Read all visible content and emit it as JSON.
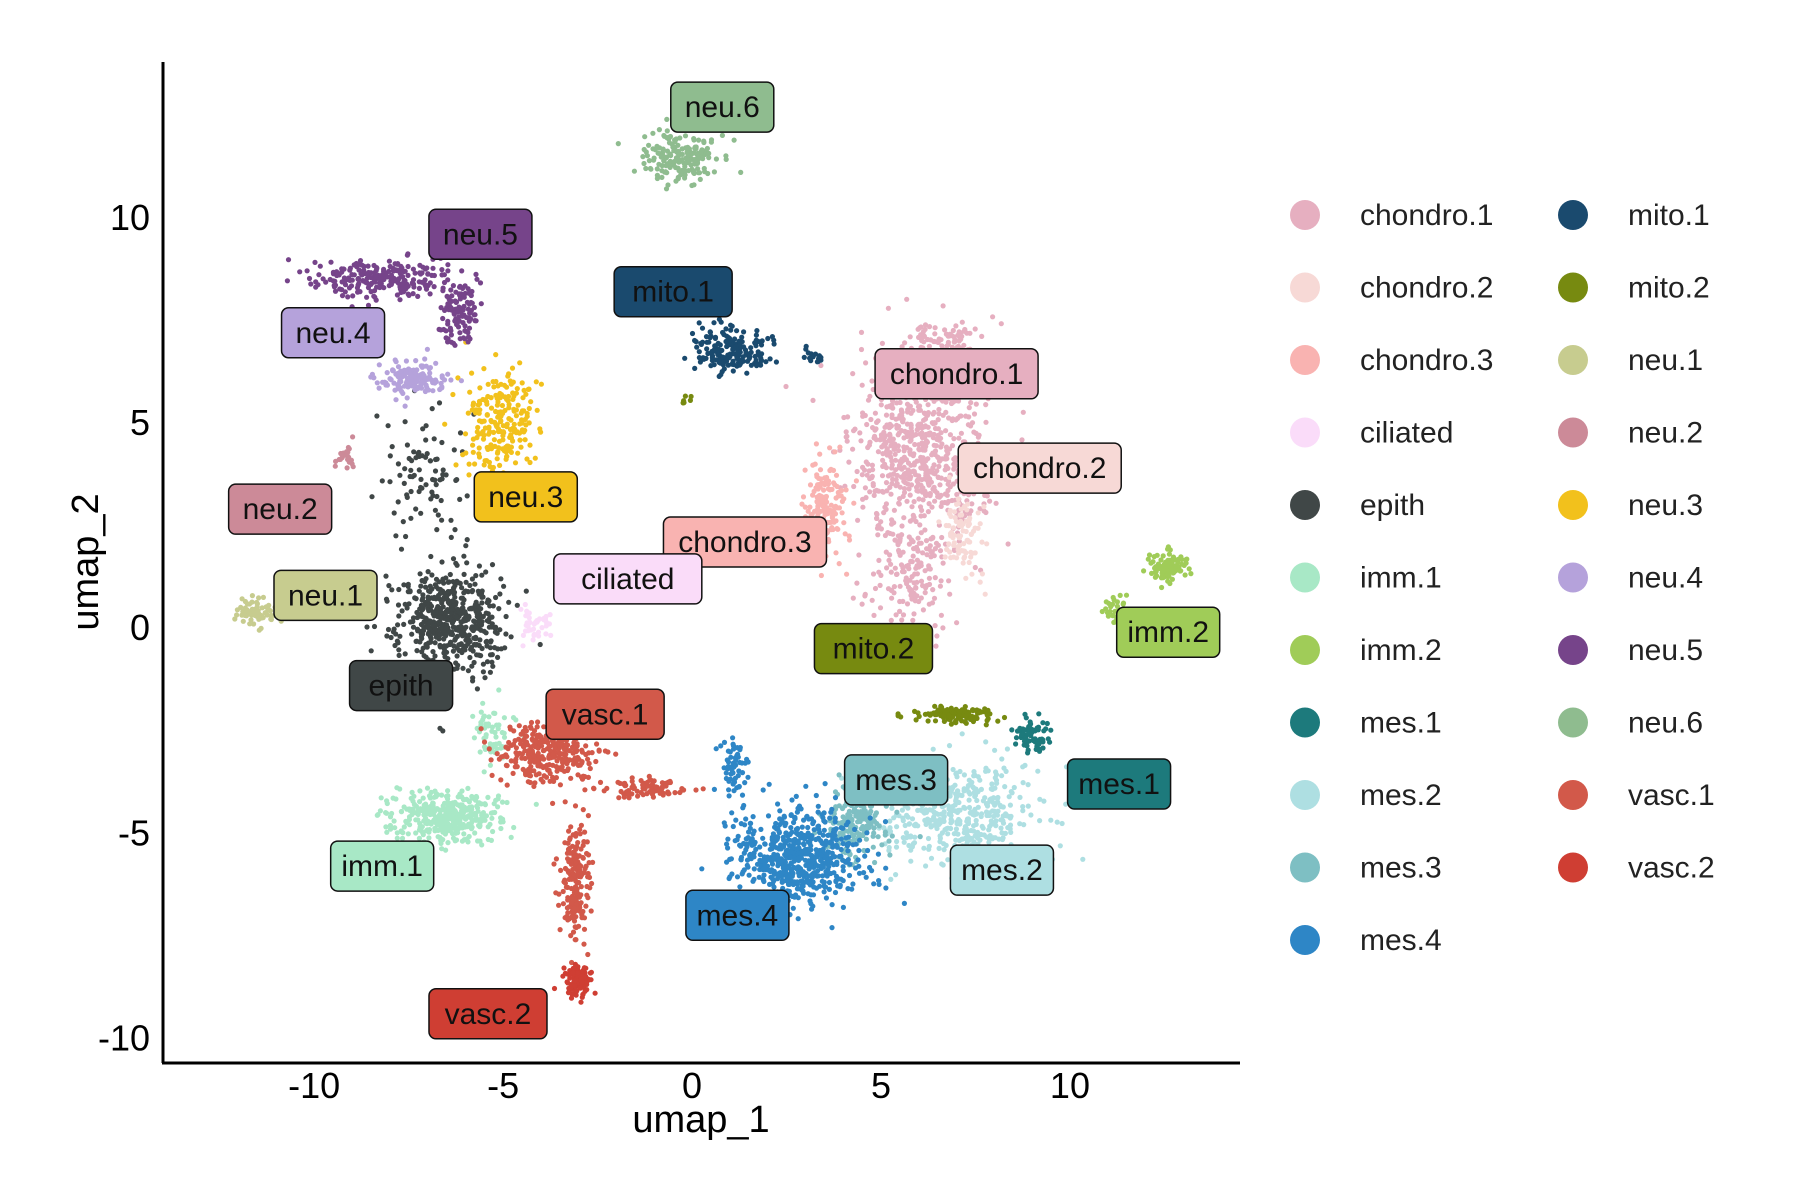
{
  "chart_data": {
    "type": "scatter",
    "xlabel": "umap_1",
    "ylabel": "umap_2",
    "xlim": [
      -14,
      14.5
    ],
    "ylim": [
      -10.6,
      13.8
    ],
    "xticks": [
      -10,
      -5,
      0,
      5,
      10
    ],
    "yticks": [
      -10,
      -5,
      0,
      5,
      10
    ],
    "grid": false,
    "legend": {
      "position": "right",
      "columns": 2
    },
    "clusters": [
      {
        "name": "chondro.1",
        "color": "#E6AFC0",
        "label_x": 7.0,
        "label_y": 6.2,
        "text_color": "#111111",
        "blobs": [
          {
            "cx": 6.0,
            "cy": 4.2,
            "sx": 1.6,
            "sy": 2.1,
            "n": 700
          },
          {
            "cx": 5.8,
            "cy": 1.2,
            "sx": 0.9,
            "sy": 1.2,
            "n": 140
          },
          {
            "cx": 6.8,
            "cy": 7.0,
            "sx": 0.8,
            "sy": 0.4,
            "n": 90
          }
        ]
      },
      {
        "name": "chondro.2",
        "color": "#F7D9D6",
        "label_x": 9.2,
        "label_y": 3.9,
        "text_color": "#111111",
        "blobs": [
          {
            "cx": 7.2,
            "cy": 2.4,
            "sx": 0.5,
            "sy": 1.0,
            "n": 90
          }
        ]
      },
      {
        "name": "chondro.3",
        "color": "#F9B3B1",
        "label_x": 1.4,
        "label_y": 2.1,
        "text_color": "#111111",
        "blobs": [
          {
            "cx": 3.5,
            "cy": 3.0,
            "sx": 0.5,
            "sy": 1.2,
            "n": 160
          }
        ]
      },
      {
        "name": "ciliated",
        "color": "#FADCF9",
        "label_x": -1.7,
        "label_y": 1.2,
        "text_color": "#111111",
        "blobs": [
          {
            "cx": -4.2,
            "cy": 0.1,
            "sx": 0.4,
            "sy": 0.4,
            "n": 40
          }
        ]
      },
      {
        "name": "epith",
        "color": "#404747",
        "label_x": -7.7,
        "label_y": -1.4,
        "text_color": "#111111",
        "blobs": [
          {
            "cx": -6.4,
            "cy": 0.2,
            "sx": 1.3,
            "sy": 1.2,
            "n": 520
          },
          {
            "cx": -7.0,
            "cy": 3.7,
            "sx": 0.9,
            "sy": 1.5,
            "n": 90
          }
        ]
      },
      {
        "name": "imm.1",
        "color": "#A8E8C6",
        "label_x": -8.2,
        "label_y": -5.8,
        "text_color": "#111111",
        "blobs": [
          {
            "cx": -6.5,
            "cy": -4.6,
            "sx": 1.3,
            "sy": 0.55,
            "n": 380
          },
          {
            "cx": -5.3,
            "cy": -2.6,
            "sx": 0.5,
            "sy": 0.7,
            "n": 60
          }
        ]
      },
      {
        "name": "imm.2",
        "color": "#A0CC58",
        "label_x": 12.6,
        "label_y": -0.1,
        "text_color": "#111111",
        "blobs": [
          {
            "cx": 12.6,
            "cy": 1.5,
            "sx": 0.5,
            "sy": 0.3,
            "n": 100
          },
          {
            "cx": 11.2,
            "cy": 0.4,
            "sx": 0.3,
            "sy": 0.4,
            "n": 30
          }
        ]
      },
      {
        "name": "mes.1",
        "color": "#1D7A7C",
        "label_x": 11.3,
        "label_y": -3.8,
        "text_color": "#111111",
        "blobs": [
          {
            "cx": 9.0,
            "cy": -2.6,
            "sx": 0.45,
            "sy": 0.35,
            "n": 70
          }
        ]
      },
      {
        "name": "mes.2",
        "color": "#AEDFE2",
        "label_x": 8.2,
        "label_y": -5.9,
        "text_color": "#111111",
        "blobs": [
          {
            "cx": 7.0,
            "cy": -4.5,
            "sx": 1.8,
            "sy": 1.1,
            "n": 450
          }
        ]
      },
      {
        "name": "mes.3",
        "color": "#7EBFC3",
        "label_x": 5.4,
        "label_y": -3.7,
        "text_color": "#111111",
        "blobs": [
          {
            "cx": 4.3,
            "cy": -4.8,
            "sx": 0.8,
            "sy": 0.8,
            "n": 170
          }
        ]
      },
      {
        "name": "mes.4",
        "color": "#2E86C6",
        "label_x": 1.2,
        "label_y": -7.0,
        "text_color": "#111111",
        "blobs": [
          {
            "cx": 2.8,
            "cy": -5.6,
            "sx": 1.5,
            "sy": 1.1,
            "n": 620
          },
          {
            "cx": 1.2,
            "cy": -3.4,
            "sx": 0.4,
            "sy": 0.6,
            "n": 60
          }
        ]
      },
      {
        "name": "mito.1",
        "color": "#1A4A6E",
        "label_x": -0.5,
        "label_y": 8.2,
        "text_color": "#111111",
        "blobs": [
          {
            "cx": 1.0,
            "cy": 6.8,
            "sx": 0.9,
            "sy": 0.55,
            "n": 170
          },
          {
            "cx": 3.2,
            "cy": 6.6,
            "sx": 0.3,
            "sy": 0.2,
            "n": 15
          }
        ]
      },
      {
        "name": "mito.2",
        "color": "#778A10",
        "label_x": 4.8,
        "label_y": -0.5,
        "text_color": "#111111",
        "blobs": [
          {
            "cx": 7.0,
            "cy": -2.1,
            "sx": 0.9,
            "sy": 0.18,
            "n": 130
          },
          {
            "cx": -0.1,
            "cy": 5.5,
            "sx": 0.15,
            "sy": 0.15,
            "n": 6
          }
        ]
      },
      {
        "name": "neu.1",
        "color": "#C7CC8F",
        "label_x": -9.7,
        "label_y": 0.8,
        "text_color": "#111111",
        "blobs": [
          {
            "cx": -11.5,
            "cy": 0.4,
            "sx": 0.6,
            "sy": 0.3,
            "n": 70
          }
        ]
      },
      {
        "name": "neu.2",
        "color": "#CC8A98",
        "label_x": -10.9,
        "label_y": 2.9,
        "text_color": "#111111",
        "blobs": [
          {
            "cx": -9.2,
            "cy": 4.2,
            "sx": 0.25,
            "sy": 0.3,
            "n": 25
          }
        ]
      },
      {
        "name": "neu.3",
        "color": "#F2C11C",
        "label_x": -4.4,
        "label_y": 3.2,
        "text_color": "#111111",
        "blobs": [
          {
            "cx": -5.1,
            "cy": 5.0,
            "sx": 0.9,
            "sy": 1.2,
            "n": 220
          }
        ]
      },
      {
        "name": "neu.4",
        "color": "#B5A2DB",
        "label_x": -9.5,
        "label_y": 7.2,
        "text_color": "#111111",
        "blobs": [
          {
            "cx": -7.4,
            "cy": 6.1,
            "sx": 0.9,
            "sy": 0.35,
            "n": 150
          }
        ]
      },
      {
        "name": "neu.5",
        "color": "#76448A",
        "label_x": -5.6,
        "label_y": 9.6,
        "text_color": "#111111",
        "blobs": [
          {
            "cx": -8.3,
            "cy": 8.5,
            "sx": 1.6,
            "sy": 0.4,
            "n": 230
          },
          {
            "cx": -6.2,
            "cy": 7.7,
            "sx": 0.5,
            "sy": 0.8,
            "n": 110
          }
        ]
      },
      {
        "name": "neu.6",
        "color": "#8FBC8F",
        "label_x": 0.8,
        "label_y": 12.7,
        "text_color": "#111111",
        "blobs": [
          {
            "cx": -0.3,
            "cy": 11.5,
            "sx": 1.0,
            "sy": 0.6,
            "n": 180
          }
        ]
      },
      {
        "name": "vasc.1",
        "color": "#D2594A",
        "label_x": -2.3,
        "label_y": -2.1,
        "text_color": "#111111",
        "blobs": [
          {
            "cx": -3.8,
            "cy": -3.0,
            "sx": 1.2,
            "sy": 0.7,
            "n": 300
          },
          {
            "cx": -3.1,
            "cy": -6.2,
            "sx": 0.35,
            "sy": 1.3,
            "n": 180
          },
          {
            "cx": -1.2,
            "cy": -3.9,
            "sx": 1.0,
            "sy": 0.2,
            "n": 90
          }
        ]
      },
      {
        "name": "vasc.2",
        "color": "#CF3E33",
        "label_x": -5.4,
        "label_y": -9.4,
        "text_color": "#111111",
        "blobs": [
          {
            "cx": -3.0,
            "cy": -8.6,
            "sx": 0.35,
            "sy": 0.35,
            "n": 110
          }
        ]
      }
    ]
  }
}
